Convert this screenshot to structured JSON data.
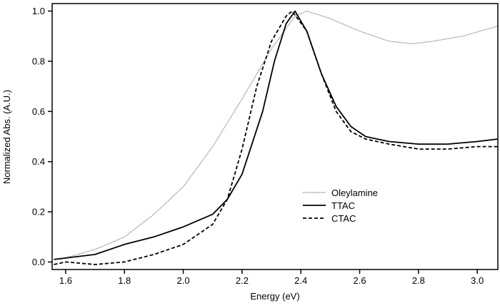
{
  "chart_data": {
    "type": "line",
    "title": "",
    "xlabel": "Energy (eV)",
    "ylabel": "Normalized Abs. (A.U.)",
    "xlim": [
      1.554,
      3.07
    ],
    "ylim": [
      -0.03,
      1.03
    ],
    "xticks": [
      "1.6",
      "1.8",
      "2.0",
      "2.2",
      "2.4",
      "2.6",
      "2.8",
      "3.0"
    ],
    "yticks": [
      "0.0",
      "0.2",
      "0.4",
      "0.6",
      "0.8",
      "1.0"
    ],
    "grid": false,
    "legend_position": "center-right",
    "series": [
      {
        "name": "Oleylamine",
        "style": "dotted",
        "color": "#888888",
        "x": [
          1.58,
          1.7,
          1.8,
          1.9,
          2.0,
          2.1,
          2.2,
          2.3,
          2.38,
          2.42,
          2.5,
          2.6,
          2.7,
          2.78,
          2.85,
          2.95,
          3.07
        ],
        "y": [
          0.01,
          0.05,
          0.1,
          0.19,
          0.3,
          0.46,
          0.65,
          0.85,
          0.98,
          1.0,
          0.97,
          0.92,
          0.88,
          0.87,
          0.88,
          0.9,
          0.94
        ]
      },
      {
        "name": "TTAC",
        "style": "solid",
        "color": "#000000",
        "x": [
          1.56,
          1.7,
          1.8,
          1.9,
          2.0,
          2.1,
          2.15,
          2.2,
          2.27,
          2.31,
          2.35,
          2.38,
          2.42,
          2.47,
          2.52,
          2.57,
          2.62,
          2.7,
          2.8,
          2.9,
          3.0,
          3.07
        ],
        "y": [
          0.01,
          0.03,
          0.07,
          0.1,
          0.14,
          0.19,
          0.25,
          0.35,
          0.6,
          0.8,
          0.95,
          1.0,
          0.92,
          0.75,
          0.62,
          0.54,
          0.5,
          0.48,
          0.47,
          0.47,
          0.48,
          0.49
        ]
      },
      {
        "name": "CTAC",
        "style": "dashed",
        "color": "#000000",
        "x": [
          1.56,
          1.6,
          1.7,
          1.8,
          1.9,
          2.0,
          2.1,
          2.15,
          2.2,
          2.25,
          2.3,
          2.35,
          2.37,
          2.42,
          2.47,
          2.52,
          2.57,
          2.62,
          2.7,
          2.8,
          2.9,
          3.0,
          3.07
        ],
        "y": [
          -0.01,
          0.0,
          -0.01,
          0.0,
          0.03,
          0.07,
          0.15,
          0.25,
          0.45,
          0.7,
          0.88,
          0.98,
          1.0,
          0.92,
          0.75,
          0.6,
          0.52,
          0.49,
          0.47,
          0.45,
          0.45,
          0.46,
          0.46
        ]
      }
    ]
  }
}
